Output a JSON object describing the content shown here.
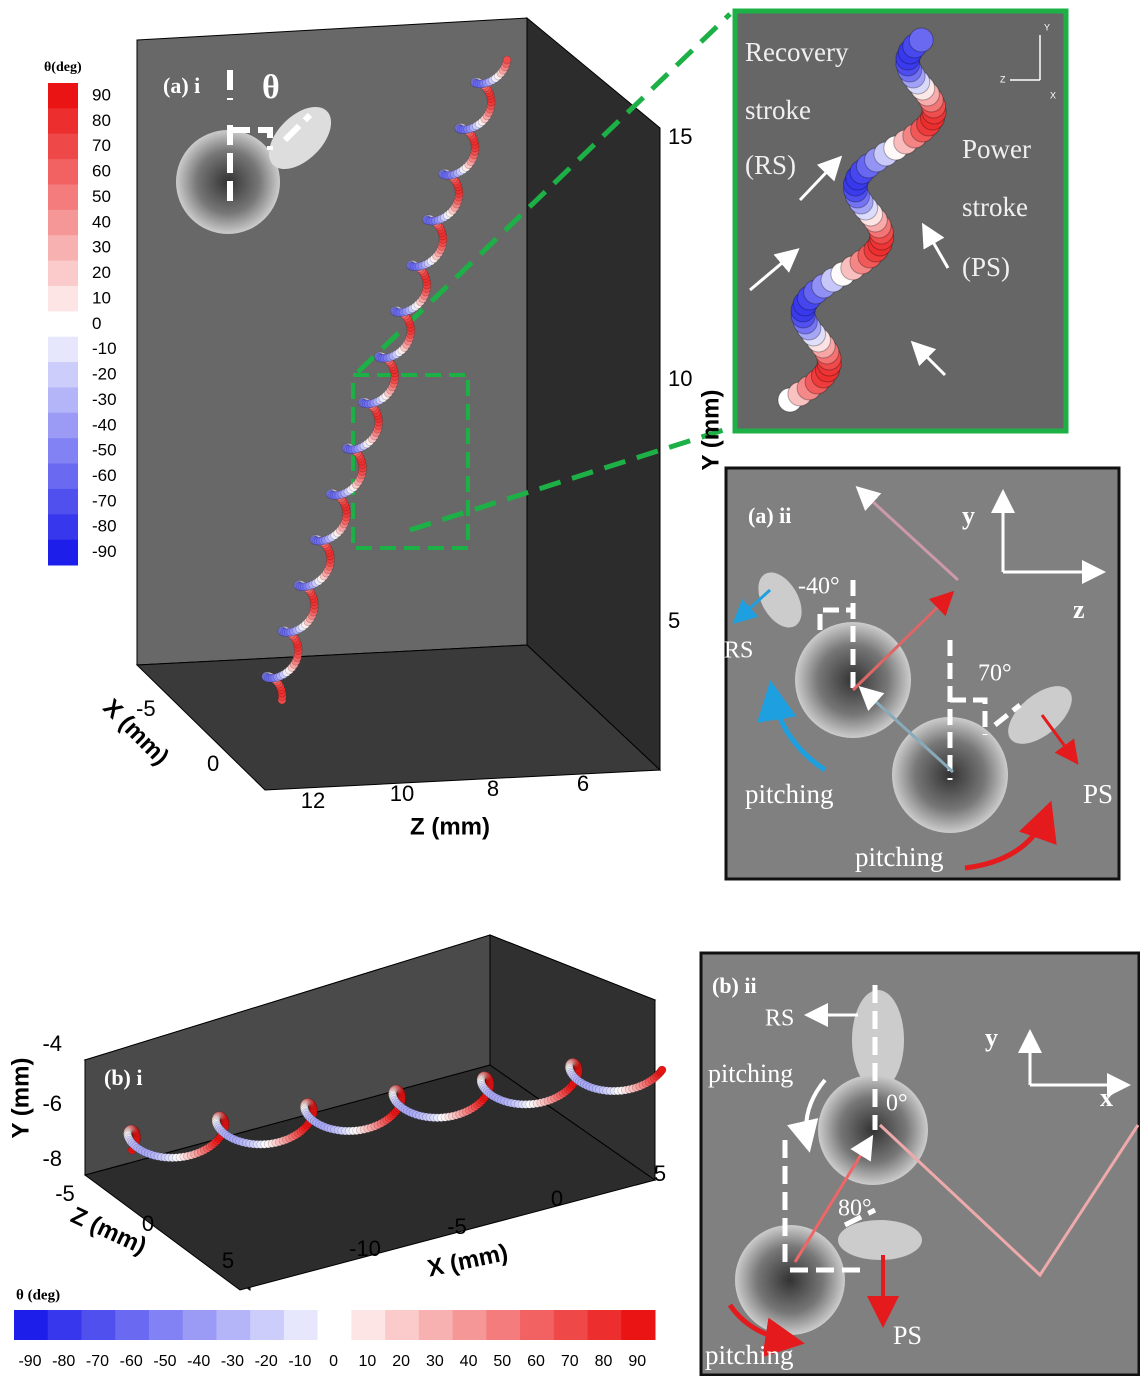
{
  "panel_a_i": {
    "label": "(a) i",
    "symbol": "θ",
    "colorbar": {
      "title": "θ(deg)",
      "ticks": [
        90,
        80,
        70,
        60,
        50,
        40,
        30,
        20,
        10,
        0,
        -10,
        -20,
        -30,
        -40,
        -50,
        -60,
        -70,
        -80,
        -90
      ]
    },
    "y_axis": {
      "label": "Y (mm)",
      "ticks": [
        15,
        10,
        5
      ]
    },
    "x_axis": {
      "label": "X (mm)",
      "ticks": [
        -5,
        0
      ]
    },
    "z_axis": {
      "label": "Z (mm)",
      "ticks": [
        12,
        10,
        8,
        6
      ]
    }
  },
  "inset": {
    "recovery": "Recovery",
    "recovery_stroke": "stroke",
    "rs": "(RS)",
    "power": "Power",
    "power_stroke": "stroke",
    "ps": "(PS)",
    "triad": [
      "Y",
      "Z",
      "X"
    ]
  },
  "panel_a_ii": {
    "label": "(a) ii",
    "angle_rs": "-40°",
    "angle_ps": "70°",
    "rs": "RS",
    "ps": "PS",
    "pitching_rs": "pitching",
    "pitching_ps": "pitching",
    "axis_y": "y",
    "axis_z": "z"
  },
  "panel_b_i": {
    "label": "(b) i",
    "y_axis": {
      "label": "Y (mm)",
      "ticks": [
        -4,
        -6,
        -8
      ]
    },
    "z_axis": {
      "label": "Z (mm)",
      "ticks": [
        -5,
        0,
        5
      ]
    },
    "x_axis": {
      "label": "X (mm)",
      "ticks": [
        -10,
        -5,
        0,
        5
      ]
    },
    "colorbar": {
      "title": "θ (deg)",
      "ticks": [
        -90,
        -80,
        -70,
        -60,
        -50,
        -40,
        -30,
        -20,
        -10,
        0,
        10,
        20,
        30,
        40,
        50,
        60,
        70,
        80,
        90
      ]
    }
  },
  "panel_b_ii": {
    "label": "(b) ii",
    "rs": "RS",
    "ps": "PS",
    "pitching_top": "pitching",
    "pitching_bottom": "pitching",
    "angle_top": "0°",
    "angle_bottom": "80°",
    "axis_y": "y",
    "axis_x": "x"
  }
}
